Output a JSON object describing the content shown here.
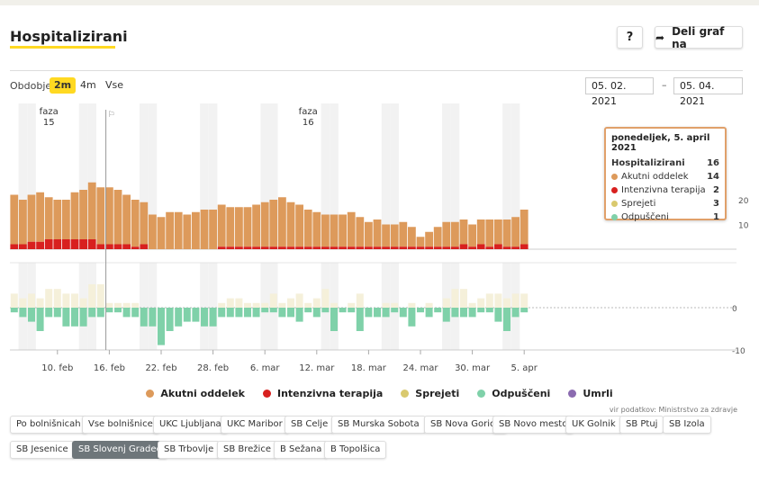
{
  "header": {
    "title": "Hospitalizirani",
    "help_label": "?",
    "share_label": "Deli graf na"
  },
  "period": {
    "label": "Obdobje",
    "options": [
      "2m",
      "4m",
      "Vse"
    ],
    "active": "2m",
    "date_from": "05. 02. 2021",
    "date_sep": "–",
    "date_to": "05. 04. 2021"
  },
  "tooltip": {
    "title": "ponedeljek, 5. april 2021",
    "rows": [
      {
        "label": "Hospitalizirani",
        "value": "16",
        "color": ""
      },
      {
        "label": "Akutni oddelek",
        "value": "14",
        "color": "#dd9a5b"
      },
      {
        "label": "Intenzivna terapija",
        "value": "2",
        "color": "#d8201f"
      },
      {
        "label": "Sprejeti",
        "value": "3",
        "color": "#d9c96e"
      },
      {
        "label": "Odpuščeni",
        "value": "1",
        "color": "#7fd1a9"
      }
    ]
  },
  "legend": [
    {
      "label": "Akutni oddelek",
      "color": "#dd9a5b"
    },
    {
      "label": "Intenzivna terapija",
      "color": "#d8201f"
    },
    {
      "label": "Sprejeti",
      "color": "#d9c96e"
    },
    {
      "label": "Odpuščeni",
      "color": "#7fd1a9"
    },
    {
      "label": "Umrli",
      "color": "#8b6bb0"
    }
  ],
  "source": "vir podatkov: Ministrstvo za zdravje",
  "hospitals": [
    "Po bolnišnicah",
    "Vse bolnišnice",
    "UKC Ljubljana",
    "UKC Maribor",
    "SB Celje",
    "SB Murska Sobota",
    "SB Nova Gorica",
    "SB Novo mesto",
    "UK Golnik",
    "SB Ptuj",
    "SB Izola",
    "SB Jesenice",
    "SB Slovenj Gradec",
    "SB Trbovlje",
    "SB Brežice",
    "B Sežana",
    "B Topolšica"
  ],
  "hospital_active": "SB Slovenj Gradec",
  "colors": {
    "acute": "#dd9a5b",
    "icu": "#d8201f",
    "admitted": "#f5f0da",
    "discharged": "#7fd1a9",
    "deaths": "#8b6bb0"
  },
  "chart_data": {
    "type": "bar",
    "start_date": "2021-02-05",
    "end_date": "2021-04-05",
    "x_ticks": [
      "10. feb",
      "16. feb",
      "22. feb",
      "28. feb",
      "6. mar",
      "12. mar",
      "18. mar",
      "24. mar",
      "30. mar",
      "5. apr"
    ],
    "y_ticks_top": [
      "20",
      "10"
    ],
    "y_ticks_bottom": [
      "0",
      "-10"
    ],
    "top_ylim": [
      0,
      30
    ],
    "bottom_ylim": [
      -10,
      10
    ],
    "annotations": [
      {
        "label": "faza",
        "value": "15",
        "date": "2021-02-09"
      },
      {
        "label": "faza",
        "value": "16",
        "date": "2021-03-11"
      }
    ],
    "series": [
      {
        "name": "Akutni oddelek",
        "values": [
          20,
          18,
          19,
          20,
          17,
          16,
          16,
          19,
          20,
          23,
          23,
          23,
          22,
          20,
          19,
          17,
          14,
          13,
          15,
          15,
          14,
          15,
          16,
          16,
          17,
          16,
          16,
          16,
          17,
          18,
          19,
          20,
          18,
          17,
          15,
          14,
          13,
          13,
          13,
          14,
          12,
          10,
          11,
          9,
          9,
          10,
          8,
          4,
          6,
          8,
          10,
          10,
          10,
          9,
          10,
          11,
          10,
          11,
          12,
          14
        ]
      },
      {
        "name": "Intenzivna terapija",
        "values": [
          2,
          2,
          3,
          3,
          4,
          4,
          4,
          4,
          4,
          4,
          2,
          2,
          2,
          2,
          1,
          2,
          0,
          0,
          0,
          0,
          0,
          0,
          0,
          0,
          1,
          1,
          1,
          1,
          1,
          1,
          1,
          1,
          1,
          1,
          1,
          1,
          1,
          1,
          1,
          1,
          1,
          1,
          1,
          1,
          1,
          1,
          1,
          1,
          1,
          1,
          1,
          1,
          2,
          1,
          2,
          1,
          2,
          1,
          1,
          2
        ]
      },
      {
        "name": "Sprejeti",
        "values": [
          3,
          2,
          3,
          2,
          4,
          4,
          3,
          3,
          2,
          5,
          5,
          1,
          1,
          1,
          1,
          0,
          0,
          0,
          0,
          0,
          0,
          0,
          0,
          0,
          1,
          2,
          2,
          1,
          1,
          1,
          3,
          1,
          2,
          3,
          1,
          2,
          4,
          1,
          0,
          1,
          3,
          0,
          0,
          1,
          1,
          0,
          1,
          0,
          1,
          0,
          2,
          4,
          4,
          1,
          2,
          3,
          3,
          2,
          3,
          3
        ]
      },
      {
        "name": "Odpuščeni",
        "values": [
          -1,
          -2,
          -3,
          -5,
          -2,
          -2,
          -4,
          -4,
          -4,
          -2,
          -2,
          -1,
          -1,
          -2,
          -2,
          -4,
          -4,
          -8,
          -5,
          -4,
          -3,
          -3,
          -4,
          -4,
          -2,
          -2,
          -2,
          -2,
          -2,
          -1,
          -1,
          -2,
          -2,
          -3,
          -1,
          -2,
          -1,
          -5,
          -1,
          -1,
          -5,
          -2,
          -2,
          -2,
          -1,
          -2,
          -4,
          -1,
          -2,
          -1,
          -3,
          -2,
          -2,
          -2,
          -1,
          -1,
          -3,
          -5,
          -2,
          -1
        ]
      }
    ]
  }
}
